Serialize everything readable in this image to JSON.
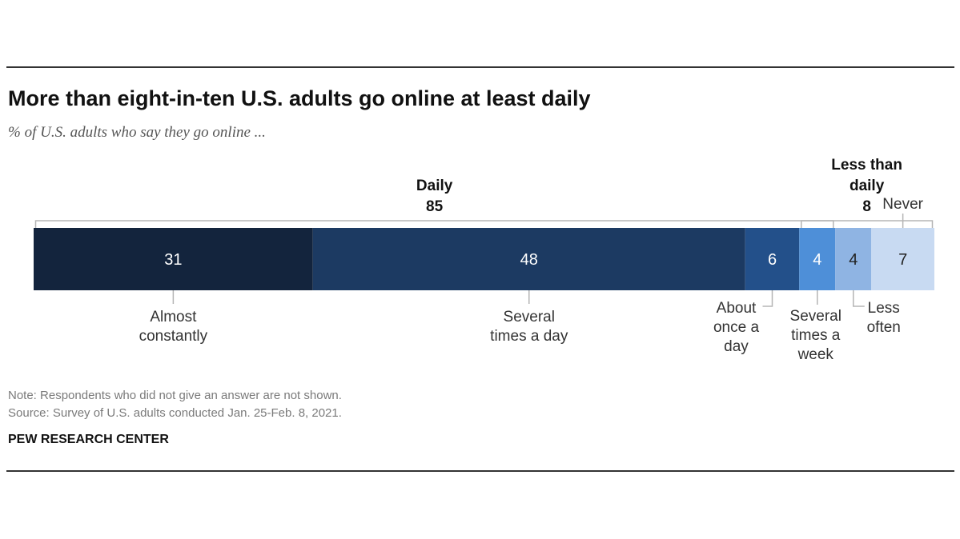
{
  "title": "More than eight-in-ten U.S. adults go online at least daily",
  "subtitle": "% of U.S. adults who say they go online ...",
  "note": "Note: Respondents who did not give an answer are not shown.",
  "source": "Source: Survey of U.S. adults conducted Jan. 25-Feb. 8, 2021.",
  "brand": "PEW RESEARCH CENTER",
  "chart_data": {
    "type": "bar",
    "orientation": "horizontal",
    "stacked": true,
    "unit": "%",
    "xlim": [
      0,
      100
    ],
    "segments": [
      {
        "label": [
          "Almost",
          "constantly"
        ],
        "value": 31,
        "color": "#13243d"
      },
      {
        "label": [
          "Several",
          "times a day"
        ],
        "value": 48,
        "color": "#1c3a62"
      },
      {
        "label": [
          "About",
          "once a",
          "day"
        ],
        "value": 6,
        "color": "#23508a"
      },
      {
        "label": [
          "Several",
          "times a",
          "week"
        ],
        "value": 4,
        "color": "#4e8fd8"
      },
      {
        "label": [
          "Less",
          "often"
        ],
        "value": 4,
        "color": "#8fb4e3"
      },
      {
        "label": [
          "Never"
        ],
        "value": 7,
        "color": "#c8daf2"
      }
    ],
    "groups": [
      {
        "label": [
          "Daily"
        ],
        "total": "85",
        "start": 0,
        "end": 3
      },
      {
        "label": [
          "Less than",
          "daily"
        ],
        "total": "8",
        "start": 3,
        "end": 5
      }
    ]
  }
}
